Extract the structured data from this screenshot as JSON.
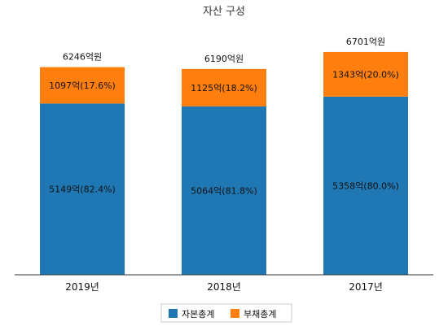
{
  "chart_data": {
    "type": "bar",
    "stacked": true,
    "title": "자산 구성",
    "categories": [
      "2019년",
      "2018년",
      "2017년"
    ],
    "series": [
      {
        "name": "자본총계",
        "color": "#1f77b4",
        "values": [
          5149,
          5064,
          5358
        ],
        "labels": [
          "5149억(82.4%)",
          "5064억(81.8%)",
          "5358억(80.0%)"
        ]
      },
      {
        "name": "부채총계",
        "color": "#ff7f0e",
        "values": [
          1097,
          1125,
          1343
        ],
        "labels": [
          "1097억(17.6%)",
          "1125억(18.2%)",
          "1343억(20.0%)"
        ]
      }
    ],
    "totals": [
      6246,
      6190,
      6701
    ],
    "total_labels": [
      "6246억원",
      "6190억원",
      "6701억원"
    ],
    "ylim": [
      0,
      7000
    ],
    "grid": false,
    "legend_position": "bottom-center",
    "colors": {
      "axis": "#333333",
      "legend_border": "#cccccc"
    }
  }
}
